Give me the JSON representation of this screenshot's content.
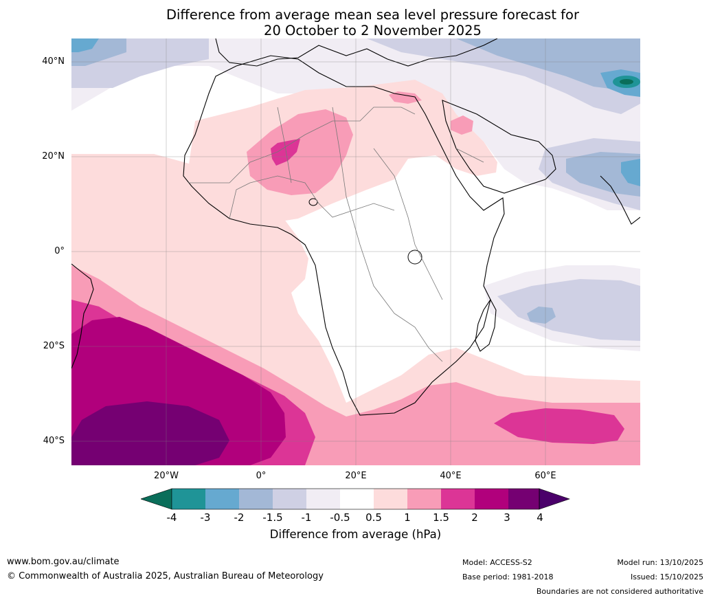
{
  "title": {
    "line1": "Difference from average mean sea level pressure forecast for",
    "line2": "20 October to 2 November 2025"
  },
  "axes": {
    "lat_labels": [
      "40°N",
      "20°N",
      "0°",
      "20°S",
      "40°S"
    ],
    "lon_labels": [
      "20°W",
      "0°",
      "20°E",
      "40°E",
      "60°E"
    ],
    "lat_range": [
      -45,
      45
    ],
    "lon_range": [
      -40,
      80
    ]
  },
  "colorbar": {
    "title": "Difference from average (hPa)",
    "ticks": [
      "-4",
      "-3",
      "-2",
      "-1.5",
      "-1",
      "-0.5",
      "0.5",
      "1",
      "1.5",
      "2",
      "3",
      "4"
    ],
    "colors": {
      "lt_-4": "#0a6e5a",
      "-4_-3": "#1f9497",
      "-3_-2": "#66a9d0",
      "-2_-1.5": "#a3b8d6",
      "-1.5_-1": "#cfd0e4",
      "-1_-0.5": "#f1edf4",
      "-0.5_0.5": "#ffffff",
      "0.5_1": "#fddcdc",
      "1_1.5": "#f89cb7",
      "1.5_2": "#dc3596",
      "2_3": "#b1007c",
      "3_4": "#750072",
      "gt_4": "#4a006a"
    }
  },
  "footer": {
    "website": "www.bom.gov.au/climate",
    "copyright": "© Commonwealth of Australia 2025, Australian Bureau of Meteorology",
    "model": "Model: ACCESS-S2",
    "base_period": "Base period: 1981-2018",
    "model_run": "Model run: 13/10/2025",
    "issued": "Issued: 15/10/2025",
    "disclaimer": "Boundaries are not considered authoritative"
  }
}
